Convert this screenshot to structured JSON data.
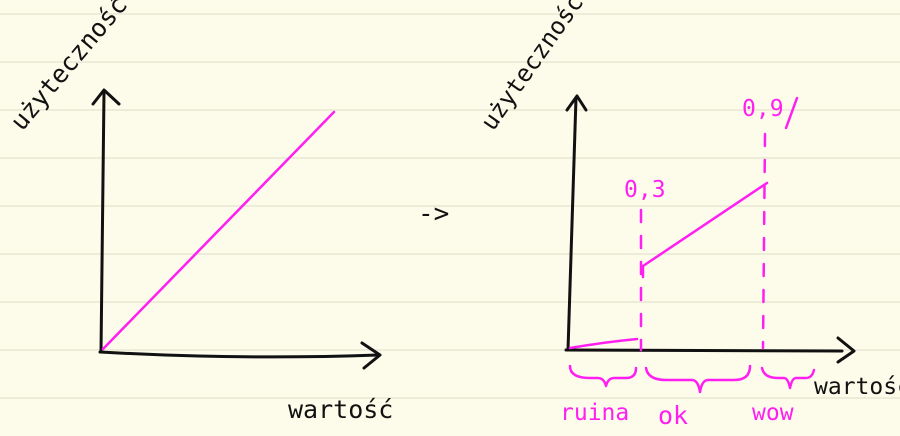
{
  "left_chart": {
    "ylabel": "użyteczność",
    "xlabel": "wartość"
  },
  "transition_arrow": "->",
  "right_chart": {
    "ylabel": "użyteczność",
    "xlabel": "wartość",
    "threshold_low": "0,3",
    "threshold_high": "0,9",
    "zones": [
      "ruina",
      "ok",
      "wow"
    ]
  },
  "colors": {
    "ink": "#111111",
    "highlight": "#ff1ff1",
    "paper": "#fdfbea",
    "rules": "#e4e2cf"
  }
}
